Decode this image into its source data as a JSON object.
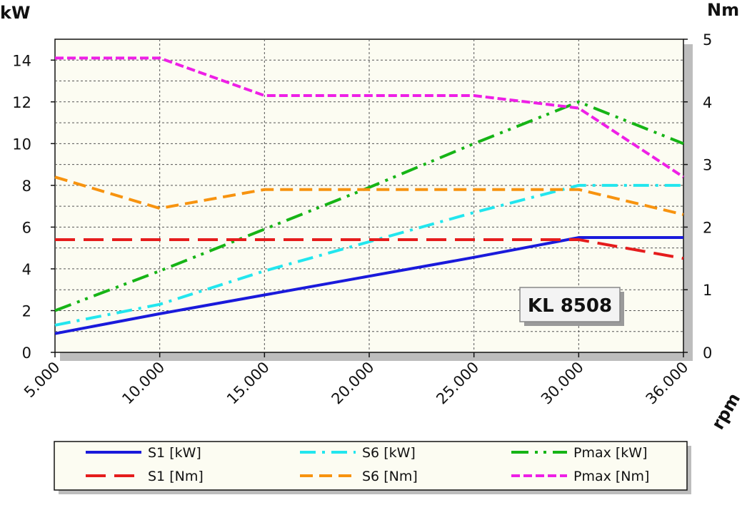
{
  "chart_data": {
    "type": "line",
    "title": "",
    "badge": "KL 8508",
    "xlabel": "rpm",
    "ylabel_left": "kW",
    "ylabel_right": "Nm",
    "categories": [
      "5.000",
      "10.000",
      "15.000",
      "20.000",
      "25.000",
      "30.000",
      "36.000"
    ],
    "ylim_left": [
      0,
      15
    ],
    "ylim_right": [
      0,
      5
    ],
    "yticks_left": [
      "0",
      "2",
      "4",
      "6",
      "8",
      "10",
      "12",
      "14"
    ],
    "yticks_right": [
      "0",
      "1",
      "2",
      "3",
      "4",
      "5"
    ],
    "grid": true,
    "legend_position": "bottom",
    "series": [
      {
        "name": "S1 [kW]",
        "axis": "left",
        "color": "#1a1adb",
        "style": "solid",
        "values": [
          0.9,
          1.85,
          2.75,
          3.65,
          4.55,
          5.5,
          5.5
        ]
      },
      {
        "name": "S6 [kW]",
        "axis": "left",
        "color": "#22e6ee",
        "style": "dashdot",
        "values": [
          1.3,
          2.3,
          3.9,
          5.3,
          6.7,
          8.0,
          8.0
        ]
      },
      {
        "name": "Pmax [kW]",
        "axis": "left",
        "color": "#16b416",
        "style": "dashdotdot",
        "values": [
          2.0,
          3.9,
          5.9,
          7.9,
          10.0,
          12.0,
          10.0
        ]
      },
      {
        "name": "S1 [Nm]",
        "axis": "right",
        "color": "#e51c1c",
        "style": "longdash",
        "values": [
          1.8,
          1.8,
          1.8,
          1.8,
          1.8,
          1.8,
          1.5
        ]
      },
      {
        "name": "S6 [Nm]",
        "axis": "right",
        "color": "#f7930f",
        "style": "dash",
        "values": [
          2.8,
          2.3,
          2.6,
          2.6,
          2.6,
          2.6,
          2.2
        ]
      },
      {
        "name": "Pmax [Nm]",
        "axis": "right",
        "color": "#ee1fe6",
        "style": "shortdash",
        "values": [
          4.7,
          4.7,
          4.1,
          4.1,
          4.1,
          3.9,
          2.8
        ]
      }
    ]
  }
}
